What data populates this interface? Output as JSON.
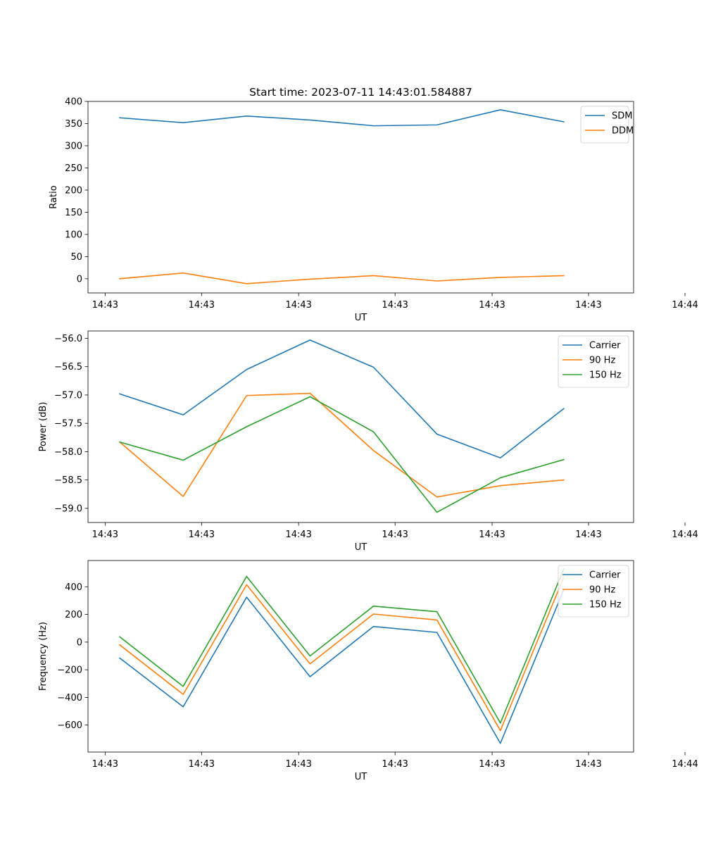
{
  "figure": {
    "title": "Start time: 2023-07-11 14:43:01.584887"
  },
  "colors": {
    "blue": "#1f77b4",
    "orange": "#ff7f0e",
    "green": "#2ca02c"
  },
  "chart_data": [
    {
      "type": "line",
      "title": "Start time: 2023-07-11 14:43:01.584887",
      "xlabel": "UT",
      "ylabel": "Ratio",
      "x": [
        1,
        2,
        3,
        4,
        5,
        6,
        7,
        8
      ],
      "xlim": [
        0.5,
        9.1
      ],
      "xticks": [
        0.77,
        2.29,
        3.82,
        5.34,
        6.87,
        8.39,
        9.91
      ],
      "xticklabels": [
        "14:43",
        "14:43",
        "14:43",
        "14:43",
        "14:43",
        "14:43",
        "14:44"
      ],
      "ylim": [
        -32,
        400
      ],
      "yticks": [
        0,
        50,
        100,
        150,
        200,
        250,
        300,
        350,
        400
      ],
      "yticklabels": [
        "0",
        "50",
        "100",
        "150",
        "200",
        "250",
        "300",
        "350",
        "400"
      ],
      "legend": "top-right",
      "series": [
        {
          "name": "SDM",
          "color": "#1f77b4",
          "values": [
            363,
            352,
            367,
            358,
            345,
            347,
            381,
            354
          ]
        },
        {
          "name": "DDM",
          "color": "#ff7f0e",
          "values": [
            0,
            13,
            -11,
            -1,
            7,
            -5,
            3,
            7
          ]
        }
      ]
    },
    {
      "type": "line",
      "title": "",
      "xlabel": "UT",
      "ylabel": "Power (dB)",
      "x": [
        1,
        2,
        3,
        4,
        5,
        6,
        7,
        8
      ],
      "xlim": [
        0.5,
        9.1
      ],
      "xticks": [
        0.77,
        2.29,
        3.82,
        5.34,
        6.87,
        8.39,
        9.91
      ],
      "xticklabels": [
        "14:43",
        "14:43",
        "14:43",
        "14:43",
        "14:43",
        "14:43",
        "14:44"
      ],
      "ylim": [
        -59.25,
        -55.87
      ],
      "yticks": [
        -59.0,
        -58.5,
        -58.0,
        -57.5,
        -57.0,
        -56.5,
        -56.0
      ],
      "yticklabels": [
        "−59.0",
        "−58.5",
        "−58.0",
        "−57.5",
        "−57.0",
        "−56.5",
        "−56.0"
      ],
      "legend": "top-right",
      "series": [
        {
          "name": "Carrier",
          "color": "#1f77b4",
          "values": [
            -56.98,
            -57.35,
            -56.55,
            -56.03,
            -56.51,
            -57.69,
            -58.11,
            -57.24
          ]
        },
        {
          "name": "90 Hz",
          "color": "#ff7f0e",
          "values": [
            -57.83,
            -58.79,
            -57.01,
            -56.97,
            -57.98,
            -58.8,
            -58.6,
            -58.5
          ]
        },
        {
          "name": "150 Hz",
          "color": "#2ca02c",
          "values": [
            -57.83,
            -58.15,
            -57.56,
            -57.03,
            -57.65,
            -59.07,
            -58.46,
            -58.14
          ]
        }
      ]
    },
    {
      "type": "line",
      "title": "",
      "xlabel": "UT",
      "ylabel": "Frequency (Hz)",
      "x": [
        1,
        2,
        3,
        4,
        5,
        6,
        7,
        8
      ],
      "xlim": [
        0.5,
        9.1
      ],
      "xticks": [
        0.77,
        2.29,
        3.82,
        5.34,
        6.87,
        8.39,
        9.91
      ],
      "xticklabels": [
        "14:43",
        "14:43",
        "14:43",
        "14:43",
        "14:43",
        "14:43",
        "14:44"
      ],
      "ylim": [
        -795,
        590
      ],
      "yticks": [
        -600,
        -400,
        -200,
        0,
        200,
        400
      ],
      "yticklabels": [
        "−600",
        "−400",
        "−200",
        "0",
        "200",
        "400"
      ],
      "legend": "top-right",
      "series": [
        {
          "name": "Carrier",
          "color": "#1f77b4",
          "values": [
            -115,
            -468,
            325,
            -250,
            113,
            70,
            -732,
            380
          ]
        },
        {
          "name": "90 Hz",
          "color": "#ff7f0e",
          "values": [
            -20,
            -378,
            415,
            -157,
            203,
            160,
            -640,
            470
          ]
        },
        {
          "name": "150 Hz",
          "color": "#2ca02c",
          "values": [
            38,
            -320,
            475,
            -100,
            260,
            220,
            -585,
            530
          ]
        }
      ]
    }
  ]
}
